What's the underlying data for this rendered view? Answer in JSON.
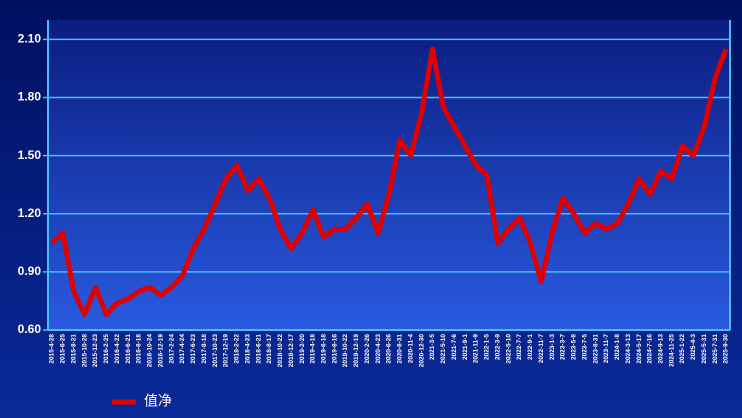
{
  "chart_data": {
    "type": "line",
    "categories": [
      "2015-4-28",
      "2015-6-25",
      "2015-8-21",
      "2015-10-28",
      "2015-12-23",
      "2016-2-25",
      "2016-4-22",
      "2016-6-21",
      "2016-8-18",
      "2016-10-24",
      "2016-12-19",
      "2017-2-24",
      "2017-4-24",
      "2017-6-23",
      "2017-8-18",
      "2017-10-23",
      "2017-12-19",
      "2018-2-22",
      "2018-4-23",
      "2018-6-21",
      "2018-8-17",
      "2018-10-22",
      "2018-12-17",
      "2019-2-20",
      "2019-4-18",
      "2019-6-18",
      "2019-8-16",
      "2019-10-22",
      "2019-12-19",
      "2020-2-26",
      "2020-4-23",
      "2020-6-26",
      "2020-8-31",
      "2020-11-4",
      "2020-12-30",
      "2021-3-5",
      "2021-5-10",
      "2021-7-6",
      "2021-9-1",
      "2021-11-9",
      "2022-1-5",
      "2022-3-9",
      "2022-5-10",
      "2022-7-7",
      "2022-9-1",
      "2022-11-7",
      "2023-1-3",
      "2023-3-7",
      "2023-5-8",
      "2023-7-5",
      "2023-8-31",
      "2023-11-7",
      "2024-1-8",
      "2024-3-13",
      "2024-5-17",
      "2024-7-16",
      "2024-9-13",
      "2024-11-25",
      "2025-1-22",
      "2025-4-3",
      "2025-5-31",
      "2025-7-31",
      "2025-9-30"
    ],
    "series": [
      {
        "name": "值净",
        "color": "#e00000",
        "values": [
          1.05,
          1.1,
          0.8,
          0.68,
          0.82,
          0.68,
          0.74,
          0.76,
          0.8,
          0.82,
          0.78,
          0.82,
          0.88,
          1.02,
          1.12,
          1.25,
          1.38,
          1.45,
          1.32,
          1.38,
          1.28,
          1.12,
          1.02,
          1.1,
          1.22,
          1.08,
          1.12,
          1.12,
          1.18,
          1.25,
          1.1,
          1.3,
          1.58,
          1.5,
          1.72,
          2.05,
          1.75,
          1.65,
          1.55,
          1.45,
          1.4,
          1.05,
          1.12,
          1.18,
          1.05,
          0.85,
          1.1,
          1.28,
          1.2,
          1.1,
          1.15,
          1.12,
          1.15,
          1.25,
          1.38,
          1.3,
          1.42,
          1.38,
          1.55,
          1.5,
          1.65,
          1.9,
          2.05
        ]
      }
    ],
    "ylim": [
      0.6,
      2.2
    ],
    "yticks": [
      {
        "value": 0.6,
        "label": "0.60"
      },
      {
        "value": 0.9,
        "label": "0.90"
      },
      {
        "value": 1.2,
        "label": "1.20"
      },
      {
        "value": 1.5,
        "label": "1.50"
      },
      {
        "value": 1.8,
        "label": "1.80"
      },
      {
        "value": 2.1,
        "label": "2.10"
      }
    ],
    "grid": true
  }
}
